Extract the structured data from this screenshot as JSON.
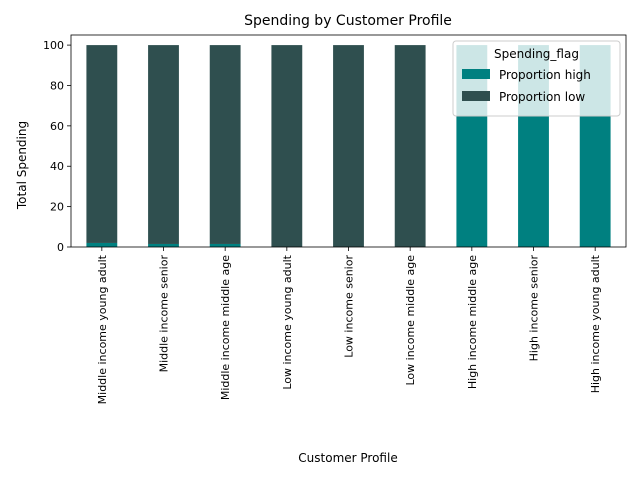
{
  "chart_data": {
    "type": "bar",
    "stacked": true,
    "title": "Spending by Customer Profile",
    "xlabel": "Customer Profile",
    "ylabel": "Total Spending",
    "ylim": [
      0,
      105
    ],
    "yticks": [
      0,
      20,
      40,
      60,
      80,
      100
    ],
    "grid": false,
    "legend_placement": "top-right",
    "legend_title": "Spending_flag",
    "categories": [
      "Middle income young adult",
      "Middle income senior",
      "Middle income middle age",
      "Low income young adult",
      "Low income senior",
      "Low income middle age",
      "High income middle age",
      "High income senior",
      "High income young adult"
    ],
    "series": [
      {
        "name": "Proportion high",
        "color": "#008080",
        "values": [
          2,
          1.5,
          1.5,
          0,
          0,
          0,
          100,
          100,
          100
        ]
      },
      {
        "name": "Proportion low",
        "color": "#2f4f4f",
        "values": [
          98,
          98.5,
          98.5,
          100,
          100,
          100,
          0,
          0,
          0
        ]
      }
    ]
  }
}
